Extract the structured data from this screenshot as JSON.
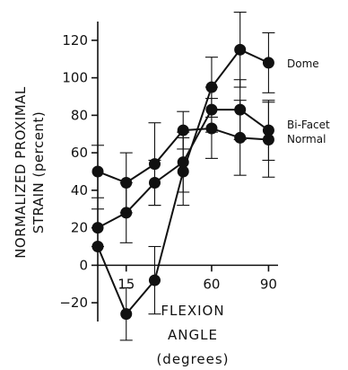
{
  "chart_data": {
    "type": "line",
    "ylabel": [
      "NORMALIZED PROXIMAL",
      "STRAIN (percent)"
    ],
    "xlabel": [
      "FLEXION",
      "ANGLE",
      "(degrees)"
    ],
    "x_ticks": [
      15,
      60,
      90
    ],
    "y_ticks": [
      -20,
      0,
      20,
      40,
      60,
      80,
      100,
      120
    ],
    "xlim": [
      0,
      95
    ],
    "ylim": [
      -30,
      130
    ],
    "series": [
      {
        "name": "Dome",
        "x": [
          0,
          15,
          30,
          45,
          60,
          75,
          90
        ],
        "values": [
          10,
          -26,
          -8,
          50,
          95,
          115,
          108
        ],
        "err": [
          0,
          14,
          18,
          18,
          16,
          20,
          16
        ]
      },
      {
        "name": "Bi-Facet",
        "x": [
          0,
          15,
          30,
          45,
          60,
          75,
          90
        ],
        "values": [
          20,
          28,
          44,
          55,
          83,
          83,
          72
        ],
        "err": [
          10,
          16,
          12,
          16,
          12,
          16,
          16
        ]
      },
      {
        "name": "Normal",
        "x": [
          0,
          15,
          30,
          45,
          60,
          75,
          90
        ],
        "values": [
          50,
          44,
          54,
          72,
          73,
          68,
          67
        ],
        "err": [
          14,
          16,
          22,
          10,
          16,
          20,
          20
        ]
      }
    ]
  }
}
